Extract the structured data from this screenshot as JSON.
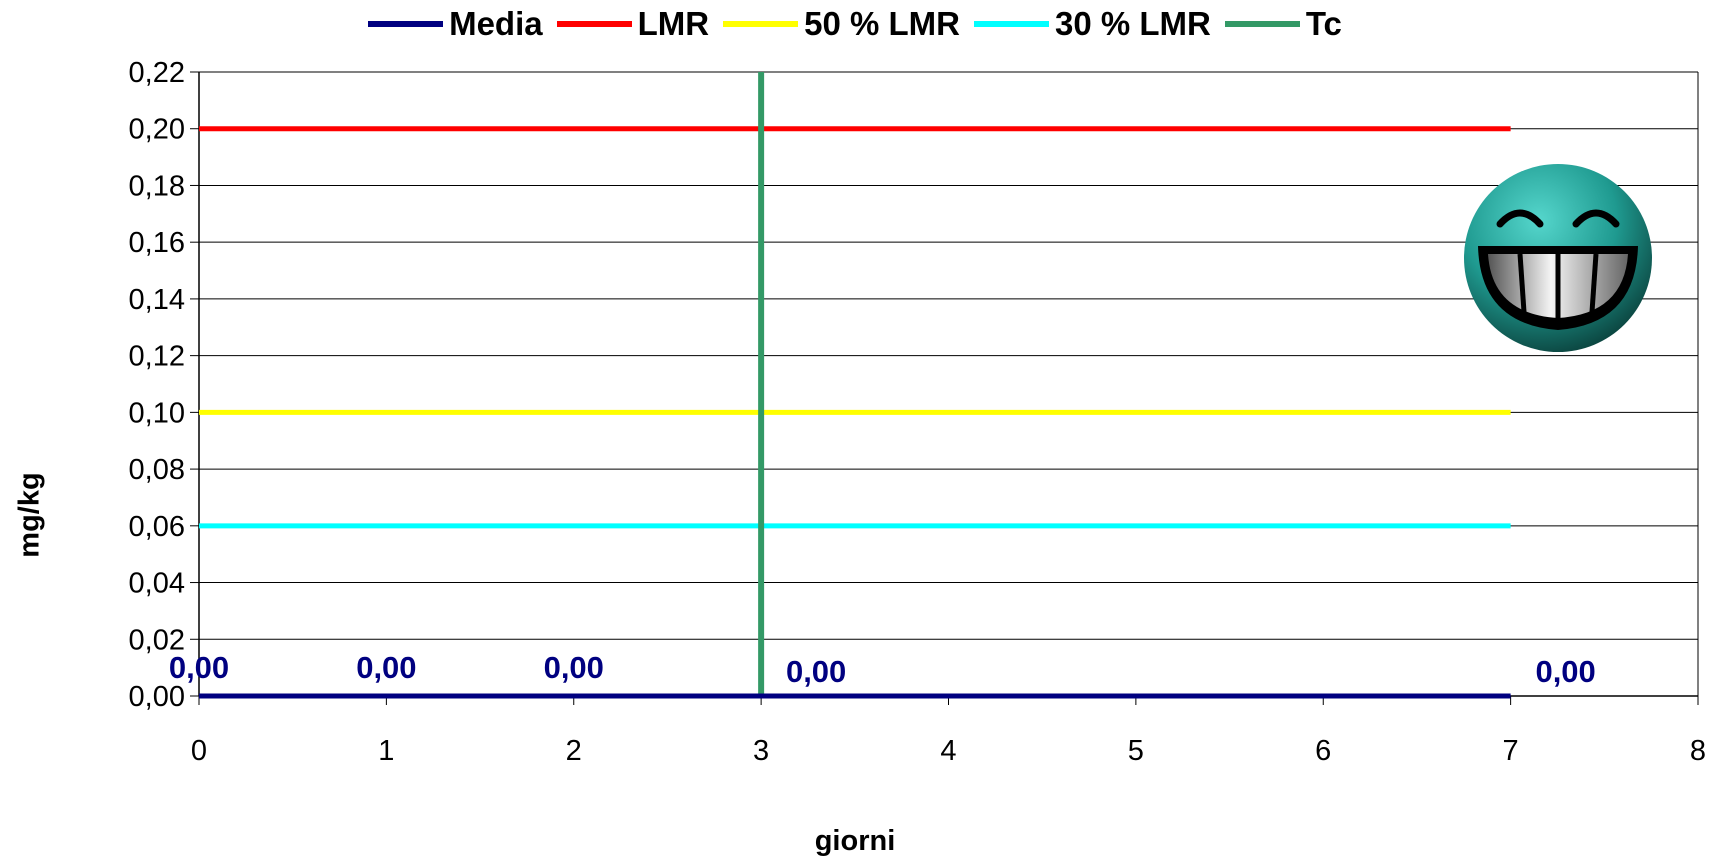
{
  "chart_data": {
    "type": "line",
    "title": "",
    "xlabel": "giorni",
    "ylabel": "mg/kg",
    "xlim": [
      0,
      8
    ],
    "ylim": [
      0,
      0.22
    ],
    "x_ticks": [
      "0",
      "1",
      "2",
      "3",
      "4",
      "5",
      "6",
      "7",
      "8"
    ],
    "y_ticks": [
      "0,00",
      "0,02",
      "0,04",
      "0,06",
      "0,08",
      "0,10",
      "0,12",
      "0,14",
      "0,16",
      "0,18",
      "0,20",
      "0,22"
    ],
    "grid": true,
    "legend_position": "top",
    "series": [
      {
        "name": "Media",
        "color": "#000080",
        "x": [
          0,
          1,
          2,
          3,
          7
        ],
        "values": [
          0,
          0,
          0,
          0,
          0
        ],
        "data_labels": [
          "0,00",
          "0,00",
          "0,00",
          "0,00",
          "0,00"
        ]
      },
      {
        "name": "LMR",
        "color": "#ff0000",
        "x": [
          0,
          7
        ],
        "values": [
          0.2,
          0.2
        ]
      },
      {
        "name": "50 % LMR",
        "color": "#ffff00",
        "x": [
          0,
          7
        ],
        "values": [
          0.1,
          0.1
        ]
      },
      {
        "name": "30 % LMR",
        "color": "#00ffff",
        "x": [
          0,
          7
        ],
        "values": [
          0.06,
          0.06
        ]
      },
      {
        "name": "Tc",
        "color": "#339966",
        "x": [
          3,
          3
        ],
        "values": [
          0,
          0.22
        ]
      }
    ],
    "annotation_icon": "grinning-face-icon"
  }
}
